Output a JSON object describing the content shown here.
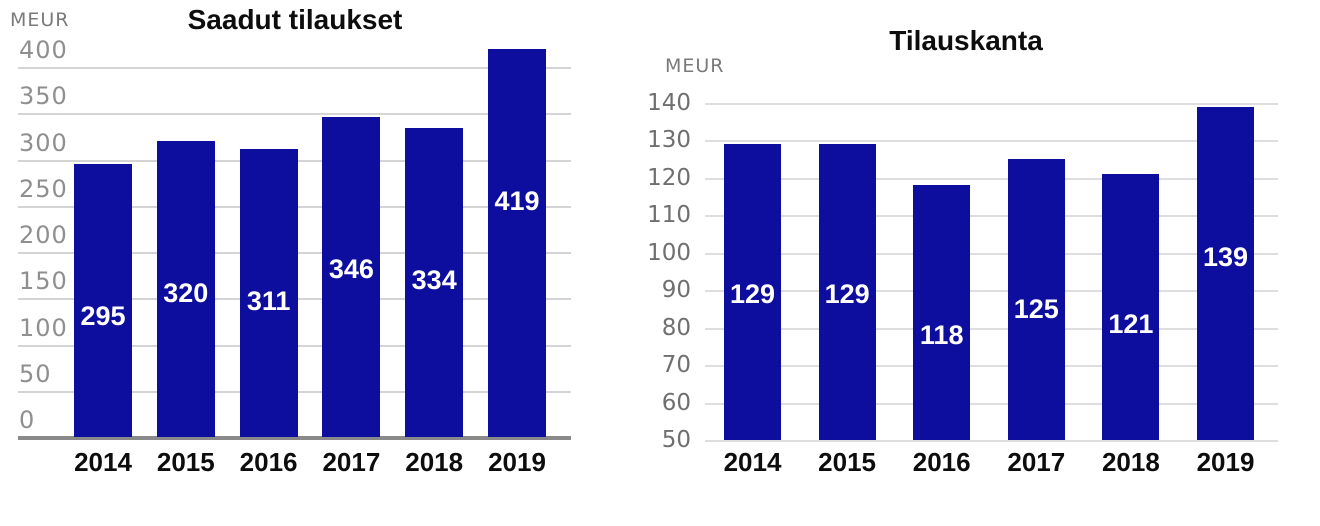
{
  "page": {
    "background": "#ffffff"
  },
  "chart_data": [
    {
      "type": "bar",
      "title": "Saadut tilaukset",
      "unit_label": "MEUR",
      "xlabel": "",
      "ylabel": "MEUR",
      "categories": [
        "2014",
        "2015",
        "2016",
        "2017",
        "2018",
        "2019"
      ],
      "values": [
        295,
        320,
        311,
        346,
        334,
        419
      ],
      "ylim": [
        0,
        400
      ],
      "ytick_step": 50,
      "grid": true,
      "legend": "none",
      "bar_color": "#0d0d9e",
      "value_label_color": "#ffffff",
      "gridline_color": "#d4d4d4",
      "baseline_color": "#8a8a8a",
      "tick_label_position": "above-line-left-aligned",
      "baseline_style": "thick-gray"
    },
    {
      "type": "bar",
      "title": "Tilauskanta",
      "unit_label": "MEUR",
      "xlabel": "",
      "ylabel": "MEUR",
      "categories": [
        "2014",
        "2015",
        "2016",
        "2017",
        "2018",
        "2019"
      ],
      "values": [
        129,
        129,
        118,
        125,
        121,
        139
      ],
      "ylim": [
        50,
        140
      ],
      "ytick_step": 10,
      "grid": true,
      "legend": "none",
      "bar_color": "#0d0d9e",
      "value_label_color": "#ffffff",
      "gridline_color": "#dedede",
      "baseline_color": "#d6d6d6",
      "tick_label_position": "on-line-right-aligned",
      "baseline_style": "light"
    }
  ]
}
